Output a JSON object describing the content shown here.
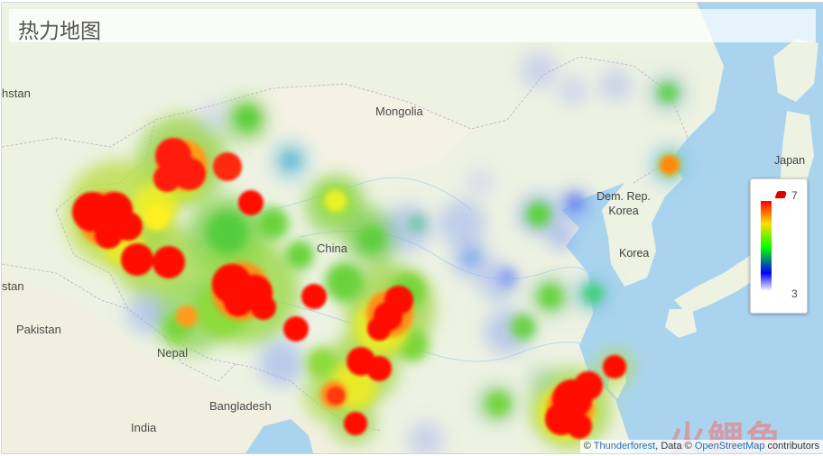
{
  "title": "热力地图",
  "labels": {
    "mongolia": "Mongolia",
    "china": "China",
    "nepal": "Nepal",
    "bangladesh": "Bangladesh",
    "india": "India",
    "pakistan": "Pakistan",
    "kazakhstan_partial": "hstan",
    "afghanistan_partial": "stan",
    "japan": "Japan",
    "dprk_line1": "Dem. Rep.",
    "dprk_line2": "Korea",
    "korea": "Korea"
  },
  "legend": {
    "max": "7",
    "min": "3"
  },
  "attribution": {
    "copy1": "© ",
    "provider": "Thunderforest",
    "data_prefix": ", Data © ",
    "osm": "OpenStreetMap",
    "suffix": " contributors"
  },
  "watermark": "火鲤鱼",
  "colors": {
    "water": "#a9d3ee",
    "land": "#e9f0dd",
    "hot": "#ff0000",
    "warm": "#ffee00",
    "mid": "#4ccd32",
    "cool": "#8aa0ff"
  }
}
